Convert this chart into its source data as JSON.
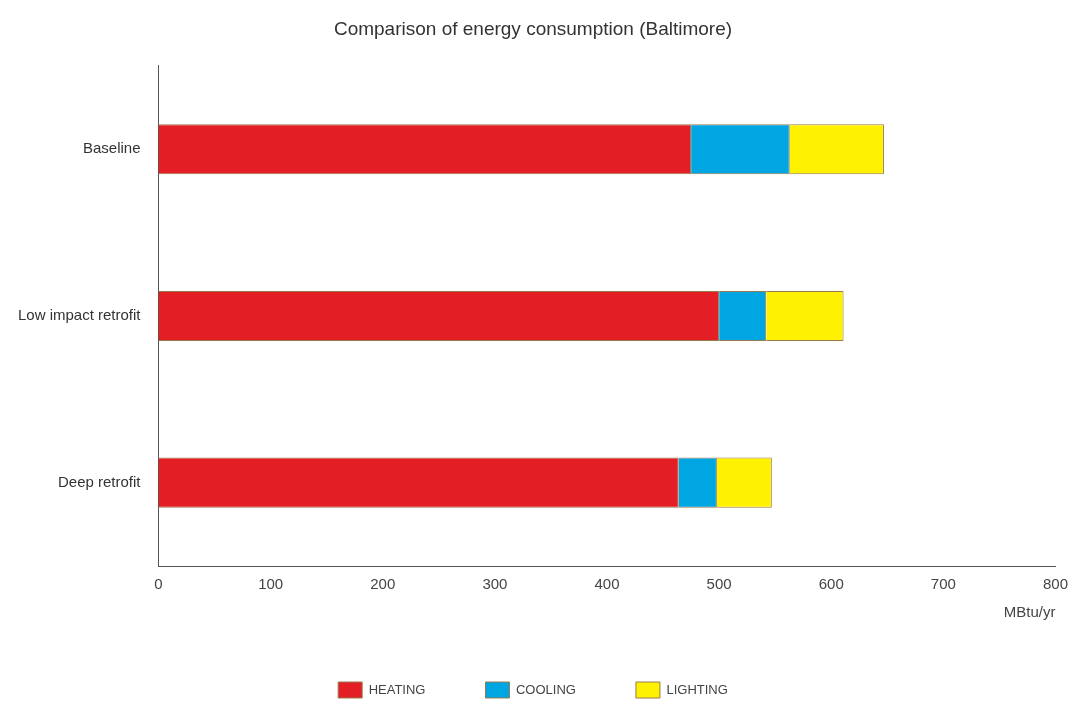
{
  "chart_data": {
    "type": "bar",
    "title": "Comparison of energy consumption (Baltimore)",
    "xlabel": "MBtu/yr",
    "orientation": "horizontal",
    "stacked": true,
    "categories": [
      "Baseline",
      "Low impact retrofit",
      "Deep retrofit"
    ],
    "series": [
      {
        "name": "HEATING",
        "color": "#e31e24",
        "values": [
          475,
          500,
          464
        ]
      },
      {
        "name": "COOLING",
        "color": "#00a6e2",
        "values": [
          88,
          42,
          34
        ]
      },
      {
        "name": "LIGHTING",
        "color": "#fff200",
        "values": [
          84,
          69,
          49
        ]
      }
    ],
    "xlim": [
      0,
      800
    ],
    "xticks": [
      0,
      100,
      200,
      300,
      400,
      500,
      600,
      700,
      800
    ],
    "grid": false,
    "legend": "bottom"
  }
}
